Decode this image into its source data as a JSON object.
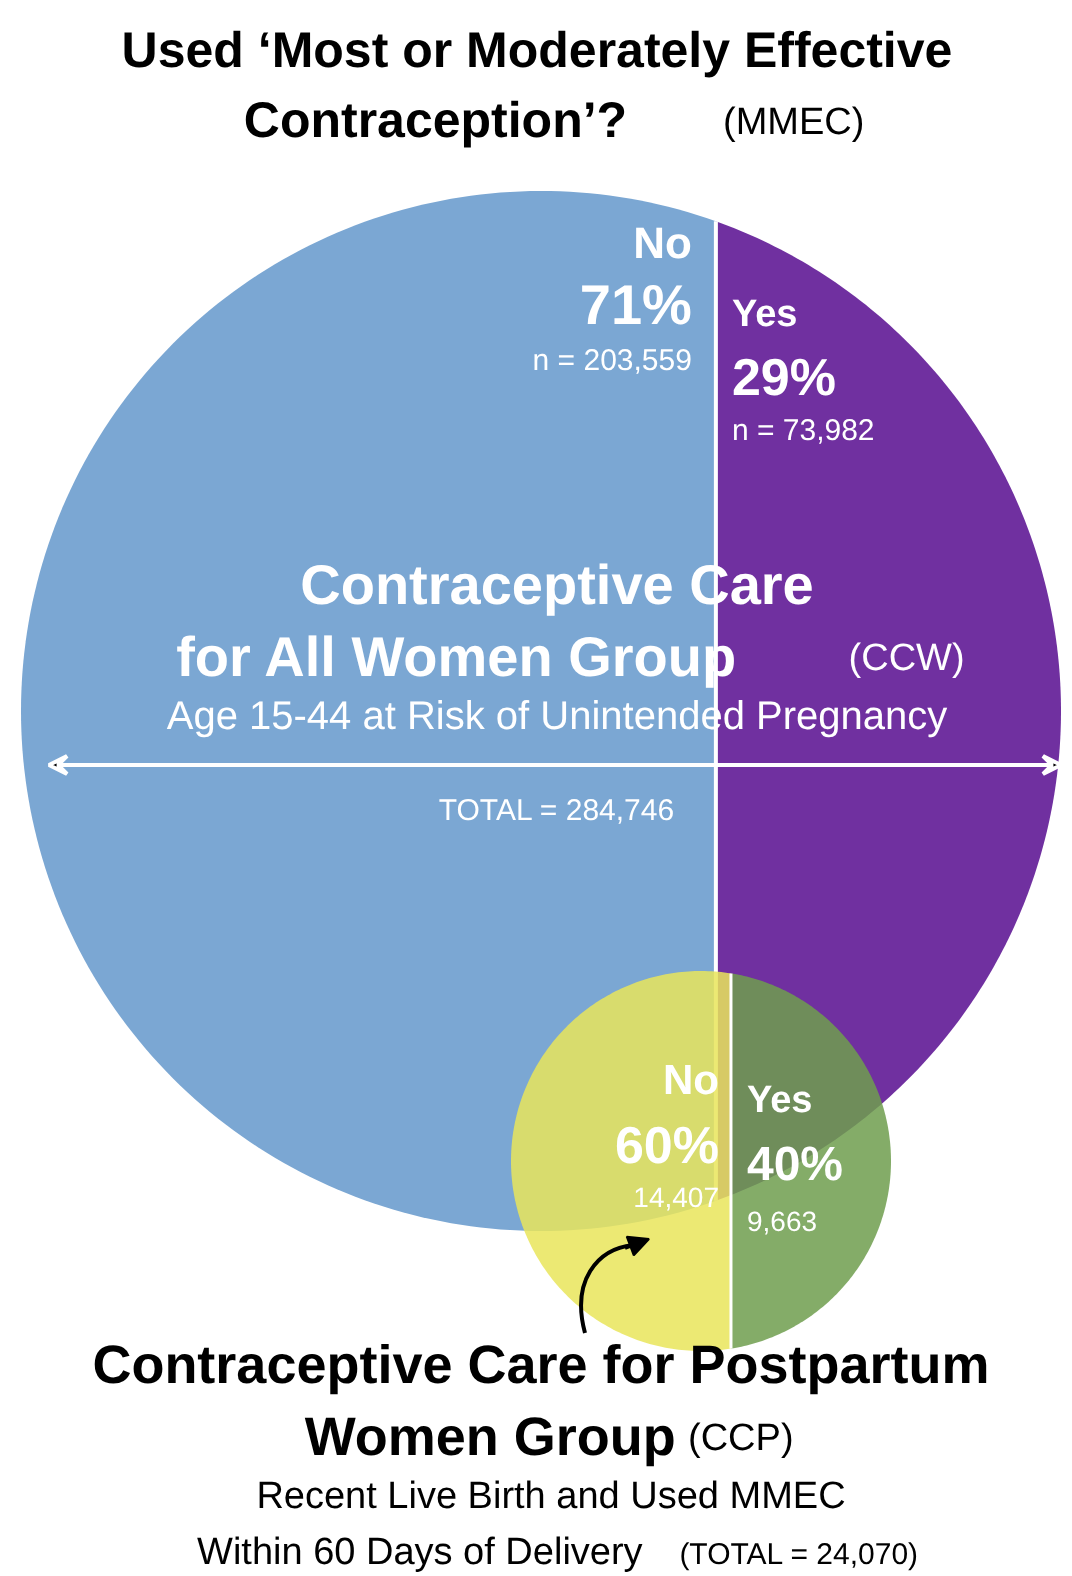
{
  "chart_data": [
    {
      "type": "other",
      "title": "Used ‘Most or Moderately Effective\nContraception’? (MMEC)",
      "subtitle": "Contraceptive Care\nfor All Women Group (CCW)",
      "categories": [
        "No",
        "Yes"
      ],
      "values": [
        71,
        29
      ],
      "value_labels": [
        "71%",
        "29%"
      ],
      "colors": [
        "#7ba7d3",
        "#7030a0"
      ],
      "annotations": [
        "n = 203,559",
        "n = 73,982",
        "Age 15-44 at Risk of Unintended Pregnancy",
        "TOTAL = 284,746"
      ]
    },
    {
      "type": "other",
      "title": "Contraceptive Care for Postpartum\nWomen Group (CCP)",
      "subtitle": "Recent Live Birth and Used MMEC\nWithin 60 Days of Delivery (TOTAL = 24,070)",
      "categories": [
        "No",
        "Yes"
      ],
      "values": [
        60,
        40
      ],
      "value_labels": [
        "60%",
        "40%"
      ],
      "colors": [
        "#e9e55a",
        "#6f9e4e"
      ],
      "annotations": [
        "14,407",
        "9,663"
      ]
    }
  ]
}
